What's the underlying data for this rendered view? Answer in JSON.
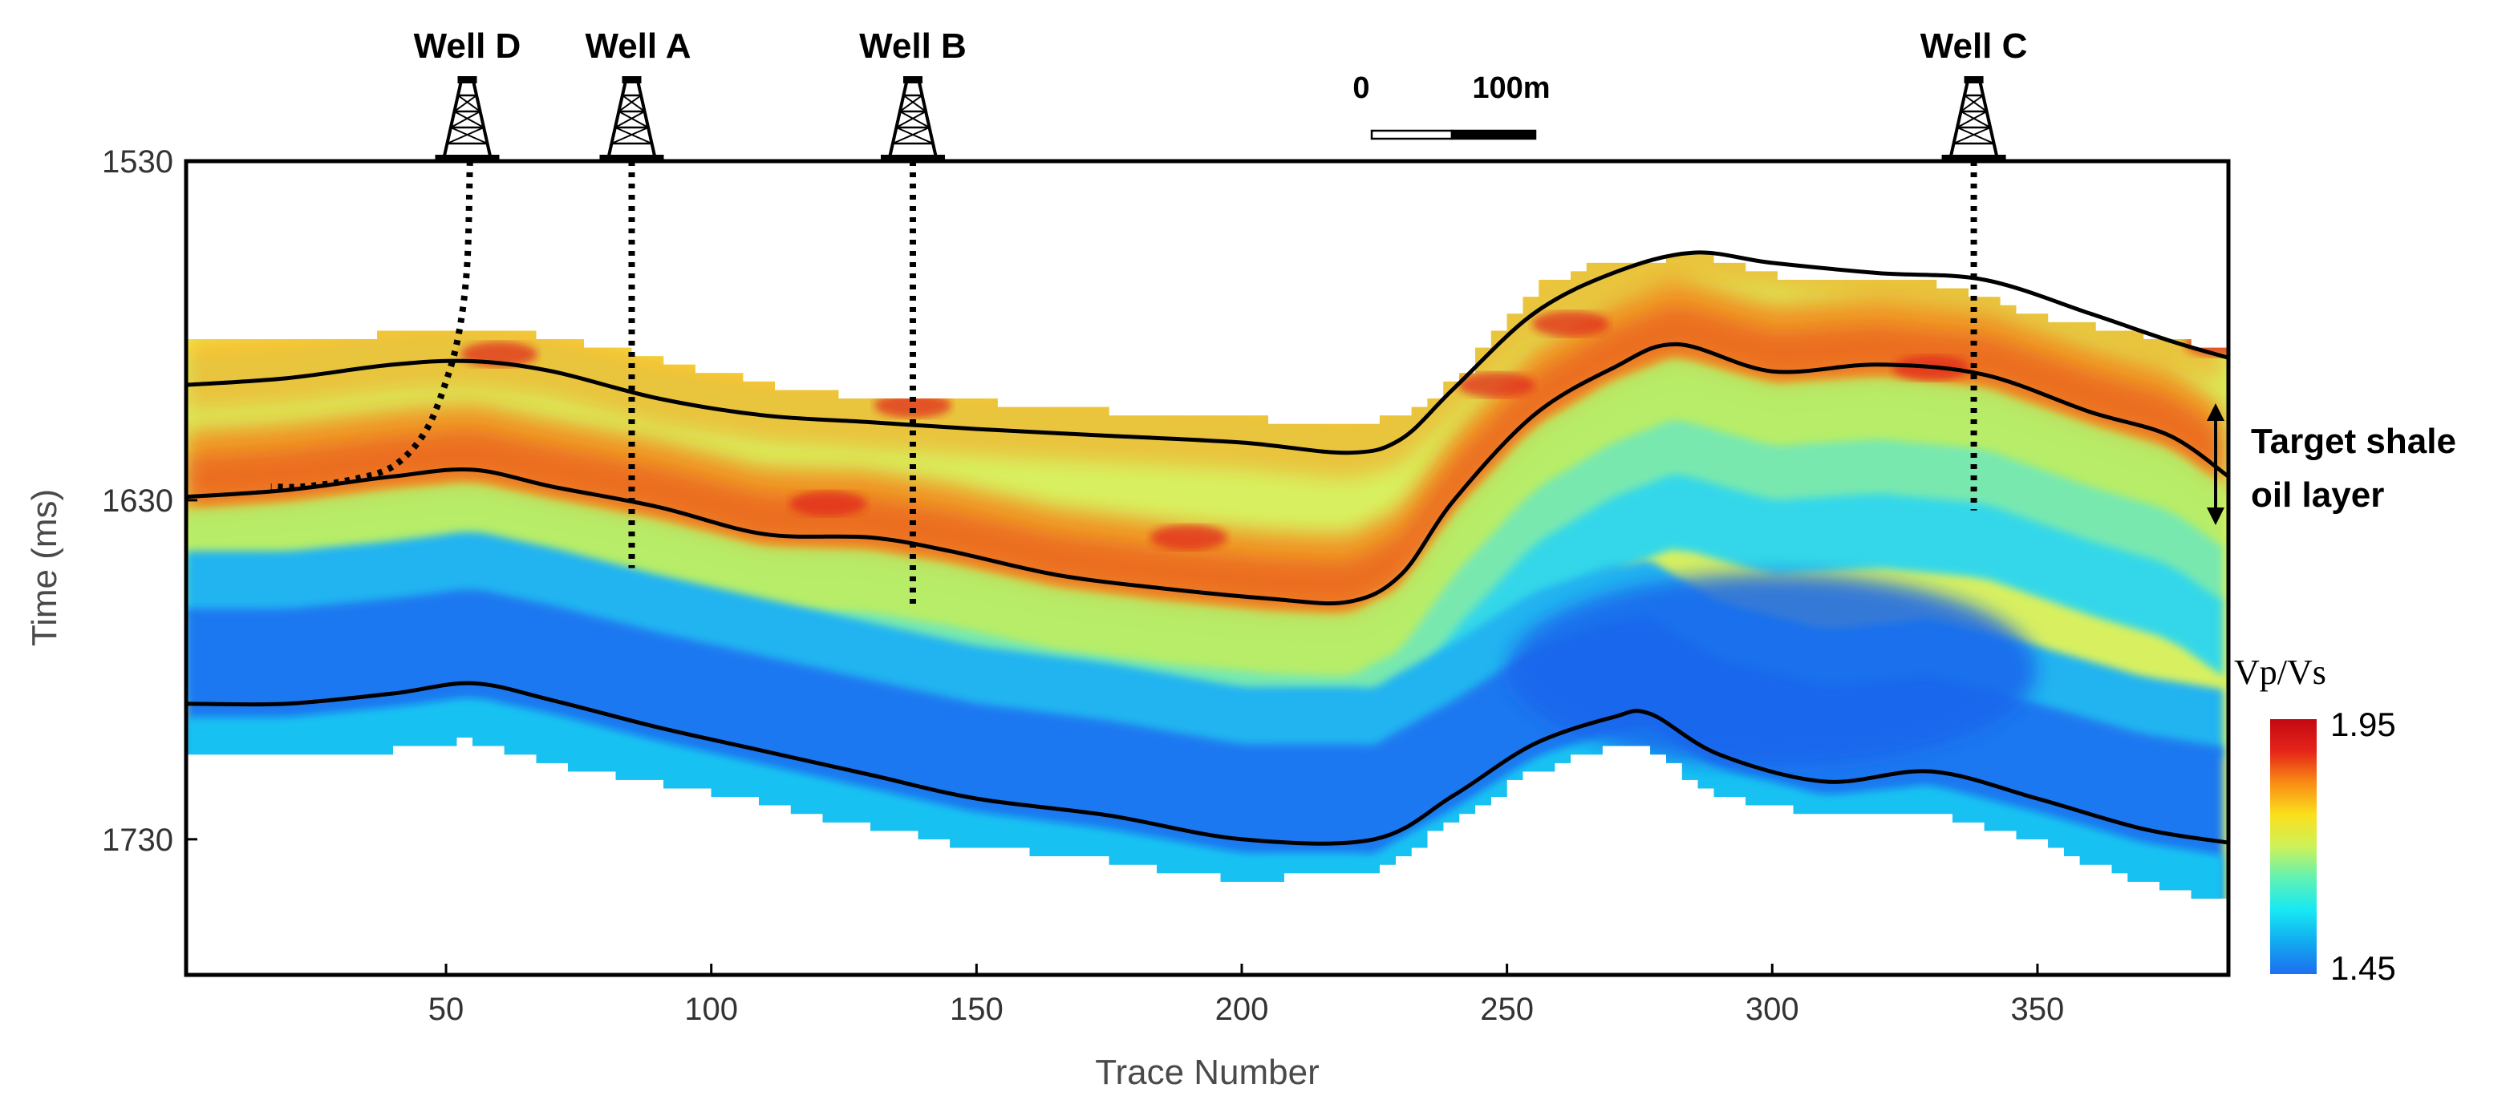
{
  "chart_data": {
    "type": "heatmap",
    "title": "",
    "xlabel": "Trace Number",
    "ylabel": "Time (ms)",
    "xlim": [
      1,
      386
    ],
    "ylim": [
      1530,
      1770
    ],
    "y_inverted": true,
    "xticks": [
      50,
      100,
      150,
      200,
      250,
      300,
      350
    ],
    "yticks": [
      1530,
      1630,
      1730
    ],
    "colorbar": {
      "title": "Vp/Vs",
      "min": 1.45,
      "max": 1.95,
      "min_label": "1.45",
      "max_label": "1.95",
      "colormap": [
        "#1e6ef0",
        "#12aaf0",
        "#16e8f4",
        "#5ff2b4",
        "#cdf25a",
        "#fbe01d",
        "#f98c14",
        "#e5241a",
        "#c30812"
      ]
    },
    "horizons": [
      {
        "name": "Top of target shale oil layer",
        "trace": [
          1,
          20,
          40,
          55,
          70,
          90,
          110,
          130,
          150,
          175,
          200,
          220,
          230,
          240,
          255,
          270,
          285,
          300,
          320,
          340,
          360,
          375,
          386
        ],
        "time": [
          1596,
          1594,
          1590,
          1589,
          1592,
          1600,
          1605,
          1607,
          1609,
          1611,
          1613,
          1616,
          1612,
          1597,
          1575,
          1563,
          1557,
          1560,
          1563,
          1565,
          1575,
          1583,
          1588
        ]
      },
      {
        "name": "Base of target shale oil layer",
        "trace": [
          1,
          20,
          40,
          55,
          70,
          90,
          110,
          130,
          145,
          165,
          185,
          205,
          220,
          230,
          240,
          255,
          270,
          282,
          300,
          320,
          340,
          360,
          375,
          386
        ],
        "time": [
          1629,
          1627,
          1623,
          1621,
          1626,
          1632,
          1640,
          1641,
          1645,
          1652,
          1656,
          1659,
          1660,
          1652,
          1630,
          1605,
          1591,
          1584,
          1592,
          1590,
          1593,
          1604,
          1611,
          1623
        ]
      },
      {
        "name": "Lower horizon",
        "trace": [
          1,
          20,
          40,
          55,
          70,
          90,
          110,
          130,
          150,
          175,
          200,
          225,
          240,
          255,
          270,
          277,
          290,
          310,
          330,
          350,
          370,
          386
        ],
        "time": [
          1690,
          1690,
          1687,
          1684,
          1689,
          1697,
          1704,
          1711,
          1718,
          1723,
          1730,
          1730,
          1717,
          1702,
          1694,
          1693,
          1705,
          1713,
          1710,
          1718,
          1727,
          1731
        ]
      }
    ],
    "wells": [
      {
        "name": "Well D",
        "trace": 54,
        "path_traces": [
          54.5,
          54,
          52.5,
          50,
          46,
          40,
          32,
          23,
          17
        ],
        "path_times": [
          1530,
          1560,
          1580,
          1595,
          1610,
          1620,
          1624,
          1626,
          1626
        ]
      },
      {
        "name": "Well A",
        "trace": 85,
        "path_traces": [
          85,
          85
        ],
        "path_times": [
          1530,
          1650
        ]
      },
      {
        "name": "Well B",
        "trace": 138,
        "path_traces": [
          138,
          138
        ],
        "path_times": [
          1530,
          1662
        ]
      },
      {
        "name": "Well C",
        "trace": 338,
        "path_traces": [
          338,
          338
        ],
        "path_times": [
          1530,
          1633
        ]
      }
    ],
    "scale_bar": {
      "start_label": "0",
      "end_label": "100m"
    },
    "annotation": {
      "line1": "Target shale",
      "line2": "oil layer"
    },
    "data_extent": {
      "top": {
        "trace": [
          1,
          30,
          55,
          70,
          90,
          110,
          130,
          150,
          175,
          200,
          220,
          230,
          240,
          255,
          265,
          275,
          285,
          295,
          310,
          330,
          350,
          370,
          386
        ],
        "time": [
          1582,
          1582,
          1579,
          1582,
          1589,
          1596,
          1600,
          1601,
          1604,
          1606,
          1608,
          1605,
          1593,
          1567,
          1559,
          1560,
          1557,
          1563,
          1566,
          1566,
          1576,
          1582,
          1586
        ]
      },
      "bottom": {
        "trace": [
          1,
          30,
          55,
          70,
          90,
          110,
          130,
          150,
          175,
          200,
          225,
          240,
          255,
          270,
          277,
          290,
          310,
          330,
          350,
          370,
          386
        ],
        "time": [
          1706,
          1706,
          1701,
          1707,
          1713,
          1719,
          1726,
          1732,
          1736,
          1742,
          1740,
          1727,
          1711,
          1703,
          1702,
          1716,
          1723,
          1722,
          1730,
          1742,
          1748
        ]
      }
    }
  }
}
